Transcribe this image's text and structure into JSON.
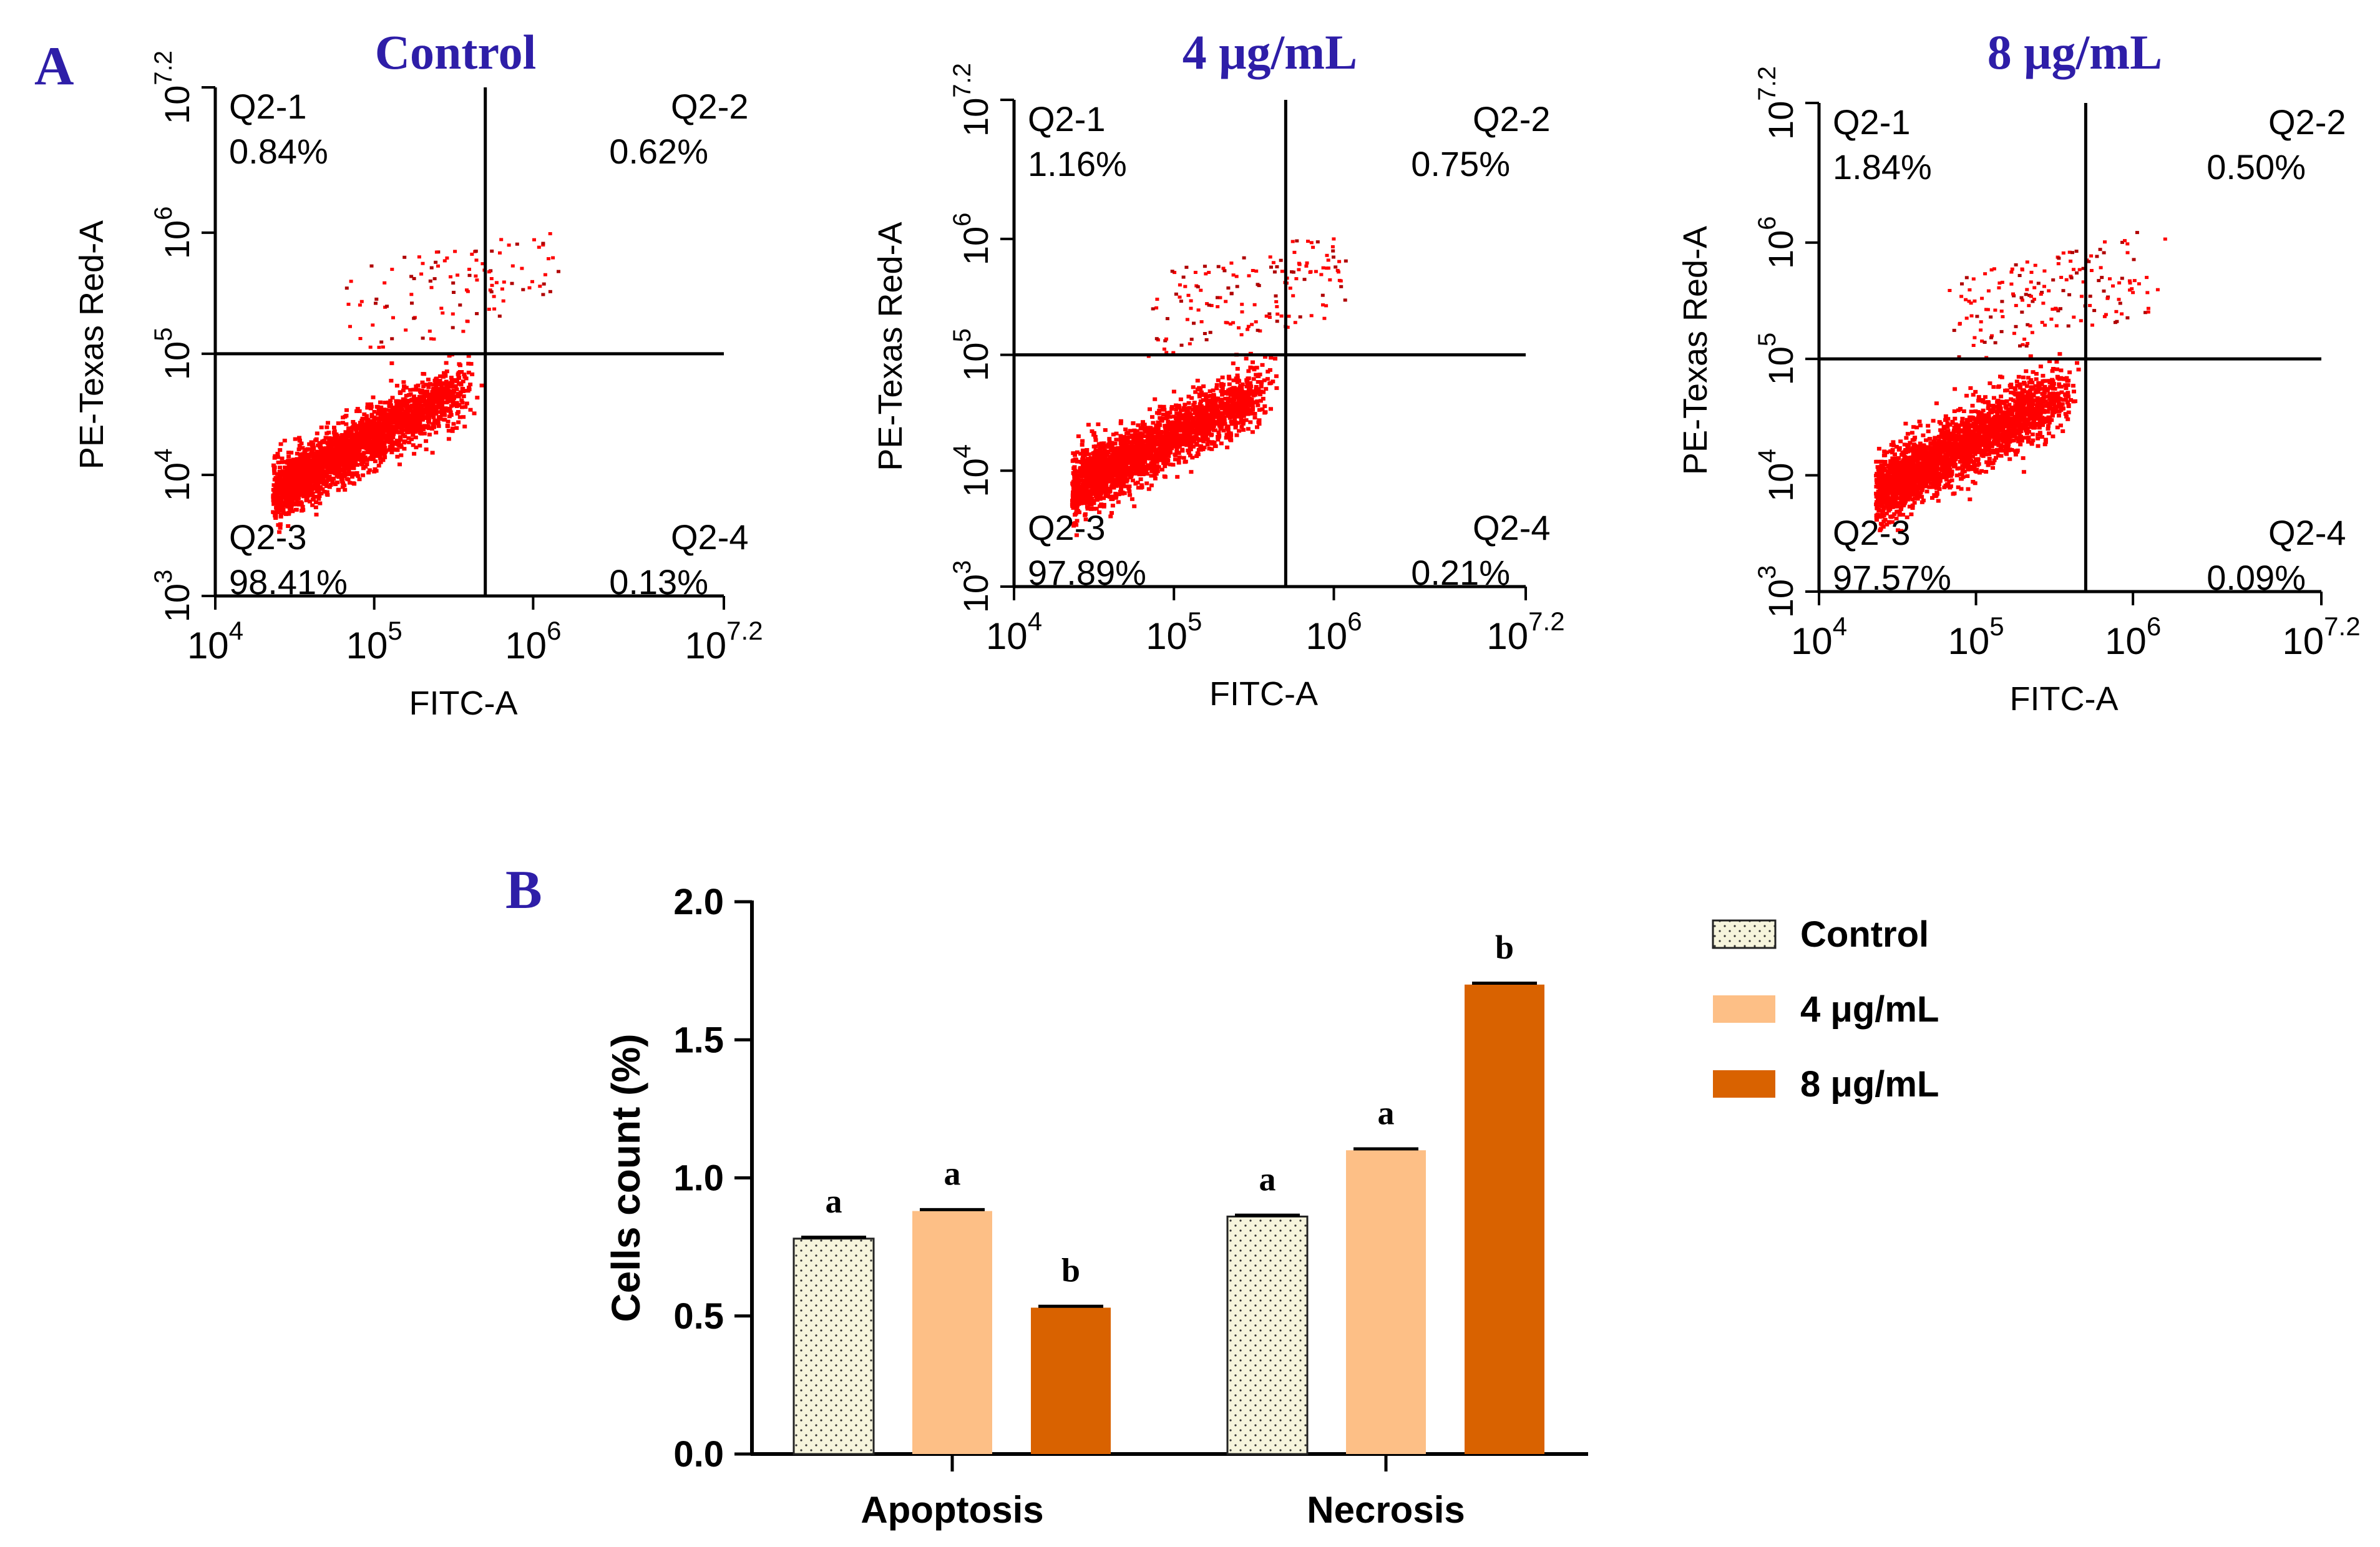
{
  "panel_labels": {
    "a": "A",
    "b": "B"
  },
  "colors": {
    "title": "#2e1ea8",
    "dots": "#ff0000",
    "control_fill": "#f6f4dc",
    "conc4": "#fdbf86",
    "conc8": "#d96200"
  },
  "chart_data": [
    {
      "type": "scatter",
      "title": "Control",
      "xlabel": "FITC-A",
      "ylabel": "PE-Texas Red-A",
      "xscale": "log",
      "yscale": "log",
      "xlim": [
        10000,
        15848932
      ],
      "ylim": [
        1000,
        15848932
      ],
      "x_ticks": [
        {
          "base": "10",
          "exp": "4"
        },
        {
          "base": "10",
          "exp": "5"
        },
        {
          "base": "10",
          "exp": "6"
        },
        {
          "base": "10",
          "exp": "7.2"
        }
      ],
      "y_ticks": [
        {
          "base": "10",
          "exp": "3"
        },
        {
          "base": "10",
          "exp": "4"
        },
        {
          "base": "10",
          "exp": "5"
        },
        {
          "base": "10",
          "exp": "6"
        },
        {
          "base": "10",
          "exp": "7.2"
        }
      ],
      "gates": {
        "x": 500000,
        "y": 100000
      },
      "quadrants": [
        {
          "name": "Q2-1",
          "value": "0.84%"
        },
        {
          "name": "Q2-2",
          "value": "0.62%"
        },
        {
          "name": "Q2-3",
          "value": "98.41%"
        },
        {
          "name": "Q2-4",
          "value": "0.13%"
        }
      ]
    },
    {
      "type": "scatter",
      "title": "4 μg/mL",
      "xlabel": "FITC-A",
      "ylabel": "PE-Texas Red-A",
      "xscale": "log",
      "yscale": "log",
      "xlim": [
        10000,
        15848932
      ],
      "ylim": [
        1000,
        15848932
      ],
      "x_ticks": [
        {
          "base": "10",
          "exp": "4"
        },
        {
          "base": "10",
          "exp": "5"
        },
        {
          "base": "10",
          "exp": "6"
        },
        {
          "base": "10",
          "exp": "7.2"
        }
      ],
      "y_ticks": [
        {
          "base": "10",
          "exp": "3"
        },
        {
          "base": "10",
          "exp": "4"
        },
        {
          "base": "10",
          "exp": "5"
        },
        {
          "base": "10",
          "exp": "6"
        },
        {
          "base": "10",
          "exp": "7.2"
        }
      ],
      "gates": {
        "x": 500000,
        "y": 100000
      },
      "quadrants": [
        {
          "name": "Q2-1",
          "value": "1.16%"
        },
        {
          "name": "Q2-2",
          "value": "0.75%"
        },
        {
          "name": "Q2-3",
          "value": "97.89%"
        },
        {
          "name": "Q2-4",
          "value": "0.21%"
        }
      ]
    },
    {
      "type": "scatter",
      "title": "8 μg/mL",
      "xlabel": "FITC-A",
      "ylabel": "PE-Texas Red-A",
      "xscale": "log",
      "yscale": "log",
      "xlim": [
        10000,
        15848932
      ],
      "ylim": [
        1000,
        15848932
      ],
      "x_ticks": [
        {
          "base": "10",
          "exp": "4"
        },
        {
          "base": "10",
          "exp": "5"
        },
        {
          "base": "10",
          "exp": "6"
        },
        {
          "base": "10",
          "exp": "7.2"
        }
      ],
      "y_ticks": [
        {
          "base": "10",
          "exp": "3"
        },
        {
          "base": "10",
          "exp": "4"
        },
        {
          "base": "10",
          "exp": "5"
        },
        {
          "base": "10",
          "exp": "6"
        },
        {
          "base": "10",
          "exp": "7.2"
        }
      ],
      "gates": {
        "x": 500000,
        "y": 100000
      },
      "quadrants": [
        {
          "name": "Q2-1",
          "value": "1.84%"
        },
        {
          "name": "Q2-2",
          "value": "0.50%"
        },
        {
          "name": "Q2-3",
          "value": "97.57%"
        },
        {
          "name": "Q2-4",
          "value": "0.09%"
        }
      ]
    },
    {
      "type": "bar",
      "categories": [
        "Apoptosis",
        "Necrosis"
      ],
      "series": [
        {
          "name": "Control",
          "values": [
            0.78,
            0.86
          ],
          "errors": [
            0.005,
            0.005
          ],
          "letters": [
            "a",
            "a"
          ],
          "color": "#f6f4dc",
          "pattern": "dots"
        },
        {
          "name": "4 μg/mL",
          "values": [
            0.88,
            1.1
          ],
          "errors": [
            0.005,
            0.005
          ],
          "letters": [
            "a",
            "a"
          ],
          "color": "#fdbf86"
        },
        {
          "name": "8 μg/mL",
          "values": [
            0.53,
            1.7
          ],
          "errors": [
            0.005,
            0.005
          ],
          "letters": [
            "b",
            "b"
          ],
          "color": "#d96200"
        }
      ],
      "ylabel": "Cells count (%)",
      "xlabel": "",
      "ylim": [
        0,
        2.0
      ],
      "yticks": [
        "0.0",
        "0.5",
        "1.0",
        "1.5",
        "2.0"
      ],
      "legend": "right"
    }
  ]
}
